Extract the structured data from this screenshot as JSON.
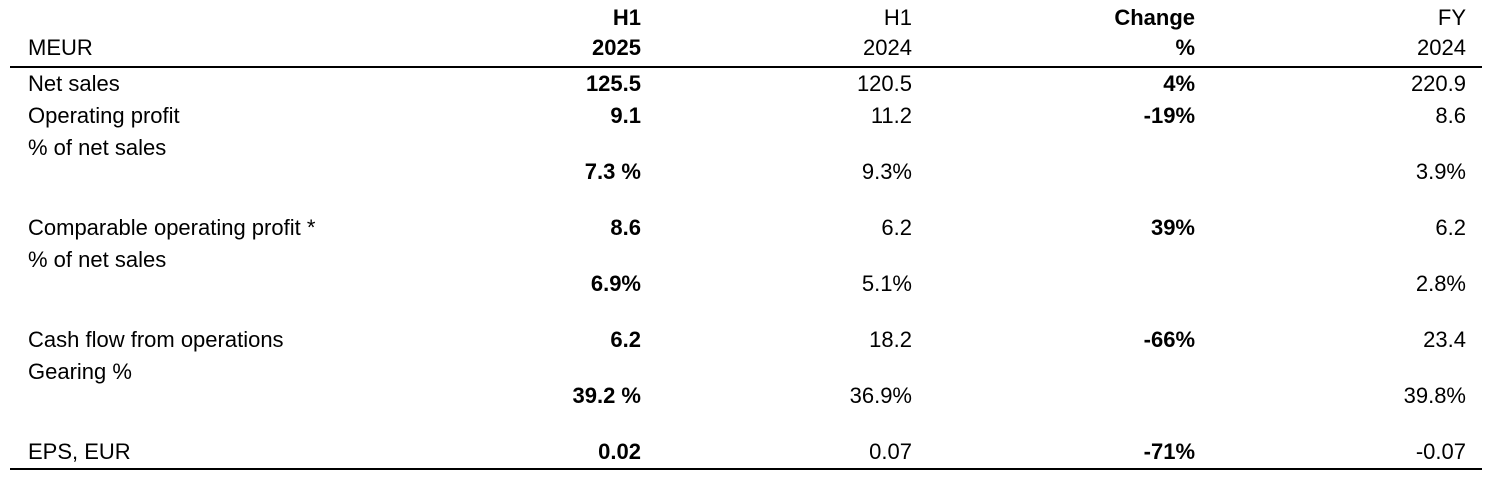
{
  "table": {
    "unit": "MEUR",
    "columns": [
      [
        "H1",
        "2025"
      ],
      [
        "H1",
        "2024"
      ],
      [
        "Change",
        "%"
      ],
      [
        "FY",
        "2024"
      ]
    ],
    "rows": [
      {
        "label": "Net sales",
        "cells": [
          "125.5",
          "120.5",
          "4%",
          "220.9"
        ]
      },
      {
        "label": "Operating profit",
        "cells": [
          "9.1",
          "11.2",
          "-19%",
          "8.6"
        ]
      },
      {
        "label": "% of net sales",
        "cells": [
          "7.3 %",
          "9.3%",
          null,
          "3.9%"
        ]
      },
      {
        "label": "Comparable operating profit *",
        "cells": [
          "8.6",
          "6.2",
          "39%",
          "6.2"
        ]
      },
      {
        "label": "% of net sales",
        "cells": [
          "6.9%",
          "5.1%",
          null,
          "2.8%"
        ]
      },
      {
        "label": "Cash flow from operations",
        "cells": [
          "6.2",
          "18.2",
          "-66%",
          "23.4"
        ]
      },
      {
        "label": "Gearing %",
        "cells": [
          "39.2 %",
          "36.9%",
          null,
          "39.8%"
        ]
      },
      {
        "label": "EPS, EUR",
        "cells": [
          "0.02",
          "0.07",
          "-71%",
          "-0.07"
        ]
      }
    ]
  }
}
